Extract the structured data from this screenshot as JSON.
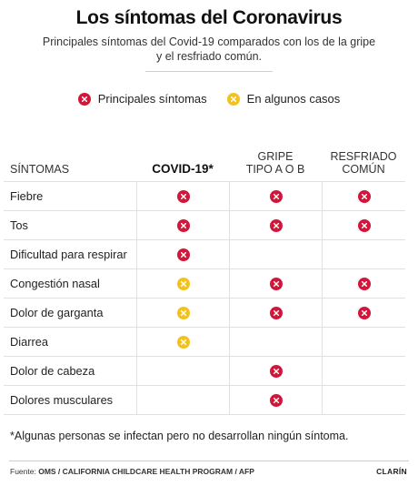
{
  "title": "Los síntomas del Coronavirus",
  "subtitle_line1": "Principales síntomas del Covid-19 comparados con los de la gripe",
  "subtitle_line2": "y el resfriado común.",
  "legend": {
    "main_label": "Principales síntomas",
    "some_label": "En algunos casos"
  },
  "colors": {
    "main": "#d3173a",
    "some": "#f4c21c"
  },
  "table": {
    "headers": {
      "symptoms": "SÍNTOMAS",
      "covid": "COVID-19*",
      "flu_line1": "GRIPE",
      "flu_line2": "TIPO A O B",
      "cold_line1": "RESFRIADO",
      "cold_line2": "COMÚN"
    },
    "rows": [
      {
        "name": "Fiebre",
        "covid": "main",
        "flu": "main",
        "cold": "main"
      },
      {
        "name": "Tos",
        "covid": "main",
        "flu": "main",
        "cold": "main"
      },
      {
        "name": "Dificultad para respirar",
        "covid": "main",
        "flu": "",
        "cold": ""
      },
      {
        "name": "Congestión nasal",
        "covid": "some",
        "flu": "main",
        "cold": "main"
      },
      {
        "name": "Dolor de garganta",
        "covid": "some",
        "flu": "main",
        "cold": "main"
      },
      {
        "name": "Diarrea",
        "covid": "some",
        "flu": "",
        "cold": ""
      },
      {
        "name": "Dolor de cabeza",
        "covid": "",
        "flu": "main",
        "cold": ""
      },
      {
        "name": "Dolores musculares",
        "covid": "",
        "flu": "main",
        "cold": ""
      }
    ]
  },
  "note": "*Algunas personas se infectan pero no desarrollan ningún síntoma.",
  "source_label": "Fuente:",
  "source_text": "OMS / CALIFORNIA CHILDCARE HEALTH PROGRAM / AFP",
  "brand": "CLARÍN"
}
